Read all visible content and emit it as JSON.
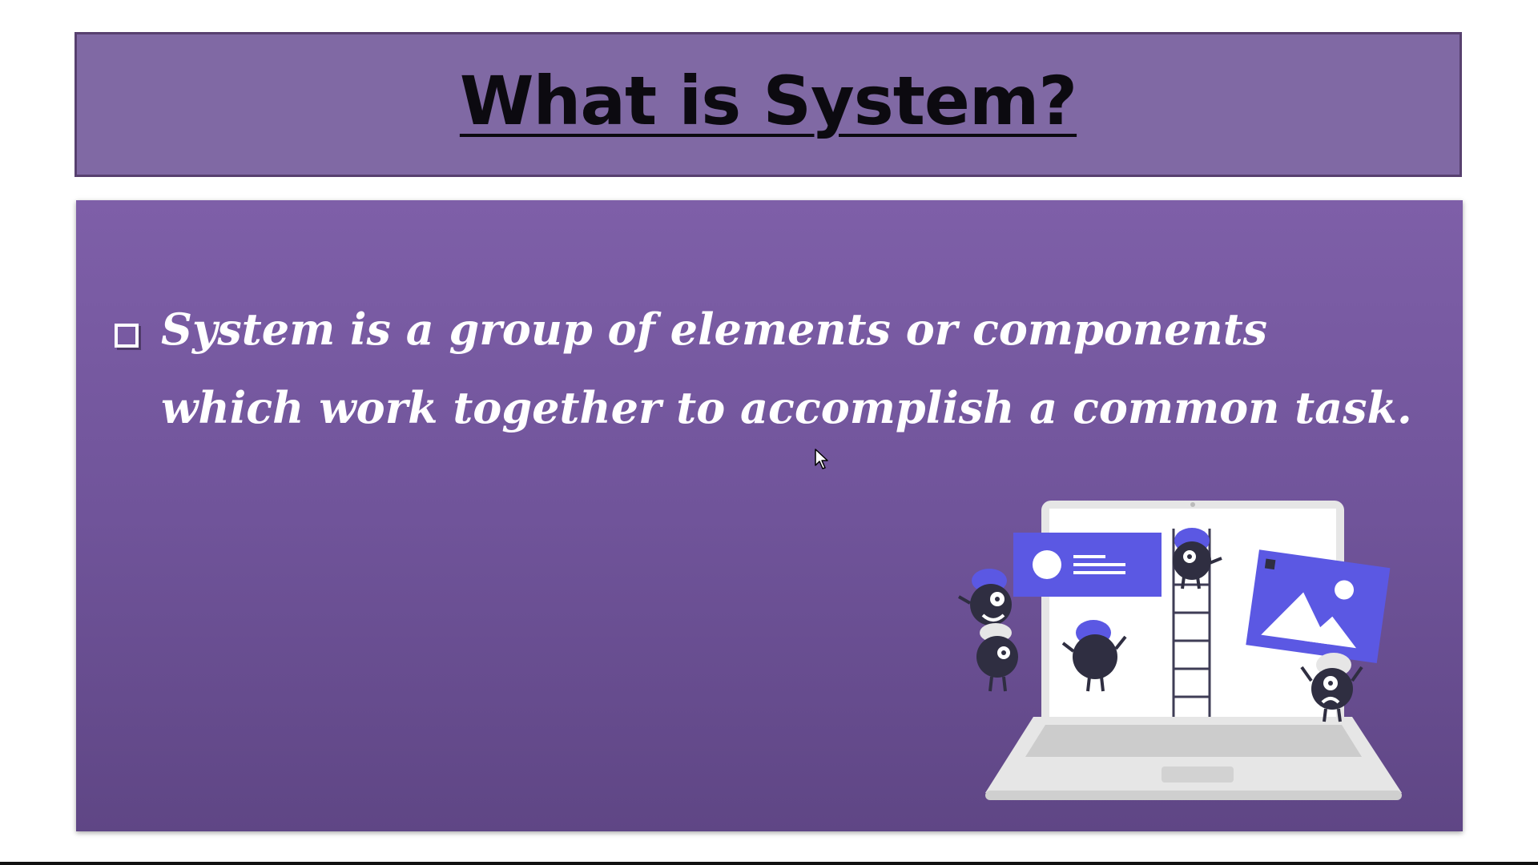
{
  "slide": {
    "title": "What is System?",
    "bullet": "System is a group of elements or components which work together to accomplish a common task."
  },
  "colors": {
    "title_bg": "#8069a4",
    "content_bg": "#7e5fa8",
    "accent": "#5b58e3"
  },
  "icons": {
    "bullet": "checkbox-square-icon",
    "cursor": "mouse-pointer-icon"
  }
}
